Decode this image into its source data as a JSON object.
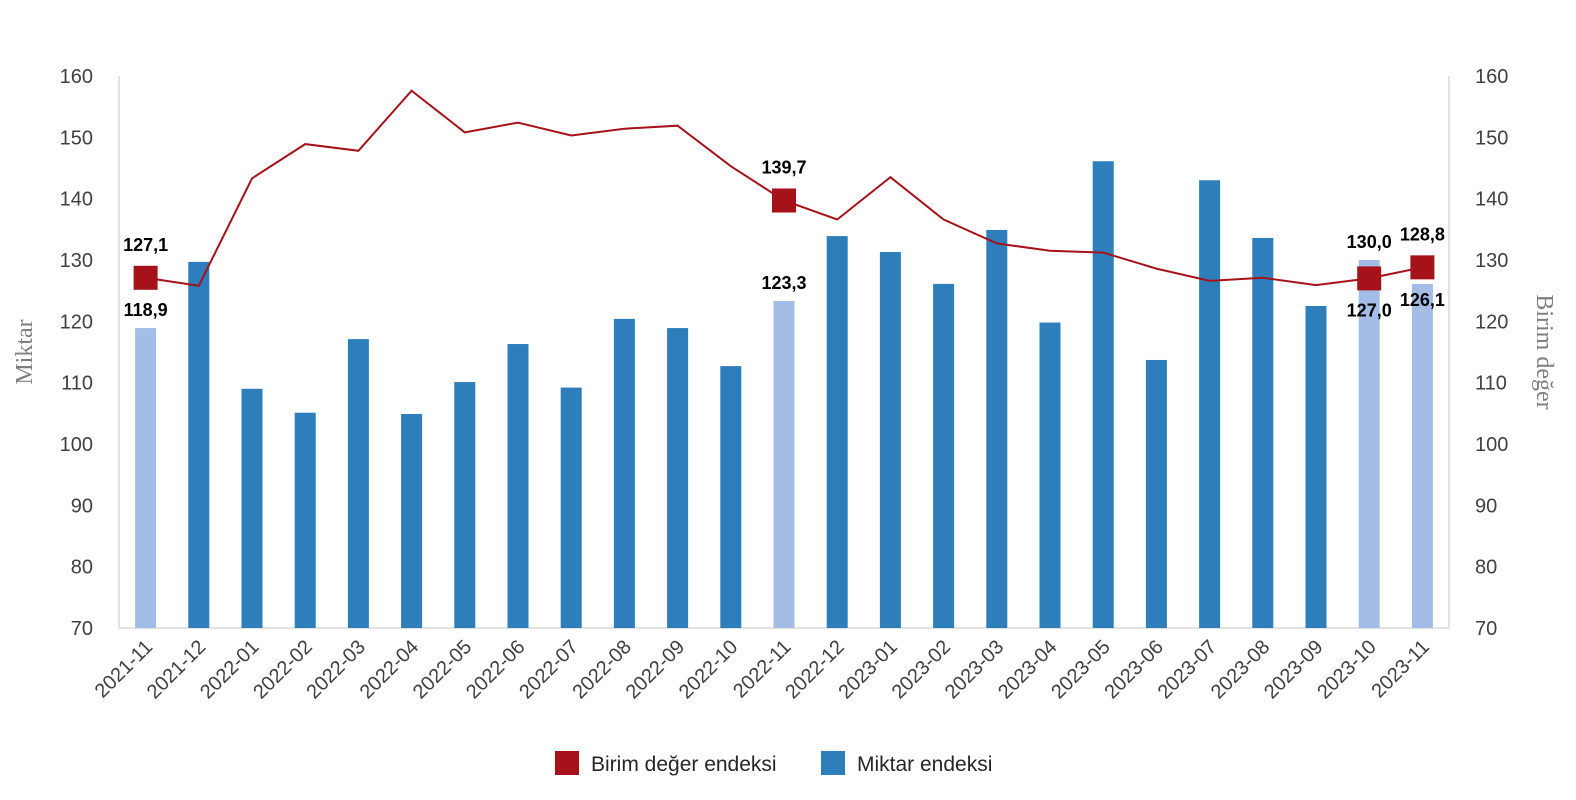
{
  "chart_data": {
    "type": "bar",
    "categories": [
      "2021-11",
      "2021-12",
      "2022-01",
      "2022-02",
      "2022-03",
      "2022-04",
      "2022-05",
      "2022-06",
      "2022-07",
      "2022-08",
      "2022-09",
      "2022-10",
      "2022-11",
      "2022-12",
      "2023-01",
      "2023-02",
      "2023-03",
      "2023-04",
      "2023-05",
      "2023-06",
      "2023-07",
      "2023-08",
      "2023-09",
      "2023-10",
      "2023-11"
    ],
    "series": [
      {
        "name": "Miktar endeksi",
        "type": "bar",
        "axis": "left",
        "color": "#2e7ebb",
        "highlight_color": "#a3bde6",
        "highlight_indices": [
          0,
          12,
          23,
          24
        ],
        "values": [
          118.9,
          129.7,
          109.0,
          105.1,
          117.1,
          104.9,
          110.1,
          116.3,
          109.2,
          120.4,
          118.9,
          112.7,
          123.3,
          133.9,
          131.3,
          126.1,
          134.9,
          119.8,
          146.1,
          113.7,
          143.0,
          133.6,
          122.5,
          130.0,
          126.1
        ]
      },
      {
        "name": "Birim değer endeksi",
        "type": "line",
        "axis": "right",
        "color": "#a6121a",
        "marker_indices": [
          0,
          12,
          23,
          24
        ],
        "values": [
          127.1,
          125.8,
          143.3,
          148.9,
          147.8,
          157.6,
          150.8,
          152.4,
          150.3,
          151.4,
          151.9,
          145.3,
          139.7,
          136.6,
          143.5,
          136.6,
          132.7,
          131.5,
          131.2,
          128.6,
          126.6,
          127.1,
          125.9,
          127.0,
          128.8
        ]
      }
    ],
    "data_labels": [
      {
        "text": "127,1",
        "series": "line",
        "index": 0,
        "pos": "above"
      },
      {
        "text": "118,9",
        "series": "bar",
        "index": 0,
        "pos": "above"
      },
      {
        "text": "139,7",
        "series": "line",
        "index": 12,
        "pos": "above"
      },
      {
        "text": "123,3",
        "series": "bar",
        "index": 12,
        "pos": "above"
      },
      {
        "text": "130,0",
        "series": "bar",
        "index": 23,
        "pos": "above"
      },
      {
        "text": "127,0",
        "series": "line",
        "index": 23,
        "pos": "below"
      },
      {
        "text": "128,8",
        "series": "line",
        "index": 24,
        "pos": "above"
      },
      {
        "text": "126,1",
        "series": "bar",
        "index": 24,
        "pos": "below"
      }
    ],
    "y_left": {
      "label": "Miktar",
      "lim": [
        70,
        160
      ],
      "ticks": [
        "70",
        "80",
        "90",
        "100",
        "110",
        "120",
        "130",
        "140",
        "150",
        "160"
      ]
    },
    "y_right": {
      "label": "Birim değer",
      "lim": [
        70,
        160
      ],
      "ticks": [
        "70",
        "80",
        "90",
        "100",
        "110",
        "120",
        "130",
        "140",
        "150",
        "160"
      ]
    },
    "grid": false,
    "legend": {
      "placement": "bottom-center",
      "items": [
        {
          "label": "Birim değer endeksi",
          "color": "#a6121a"
        },
        {
          "label": "Miktar endeksi",
          "color": "#2e7ebb"
        }
      ]
    }
  }
}
